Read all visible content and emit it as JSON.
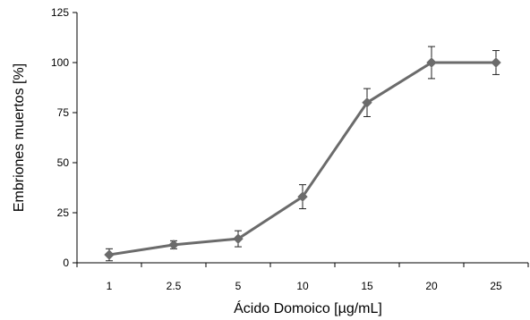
{
  "chart_data": {
    "type": "line",
    "title": "",
    "xlabel": "Ácido Domoico [µg/mL]",
    "ylabel": "Embriones muertos [%]",
    "categories": [
      "1",
      "2.5",
      "5",
      "10",
      "15",
      "20",
      "25"
    ],
    "series": [
      {
        "values": [
          4,
          9,
          12,
          33,
          80,
          100,
          100
        ],
        "error": [
          3,
          2,
          4,
          6,
          7,
          8,
          6
        ],
        "color": "#6b6b6b",
        "marker": "diamond"
      }
    ],
    "ylim": [
      0,
      125
    ],
    "yticks": [
      "0",
      "25",
      "50",
      "75",
      "100",
      "125"
    ],
    "grid": false,
    "legend": "none"
  }
}
